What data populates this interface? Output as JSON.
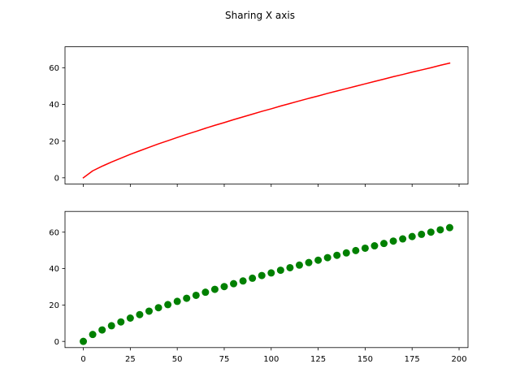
{
  "figure": {
    "title": "Sharing X axis"
  },
  "chart_data": [
    {
      "type": "line",
      "title": "",
      "xlabel": "",
      "ylabel": "",
      "sharex": true,
      "xlim": [
        -9.75,
        204.75
      ],
      "ylim": [
        -3.4,
        71.4
      ],
      "xticks": [
        0,
        25,
        50,
        75,
        100,
        125,
        150,
        175,
        200
      ],
      "xtick_labels_visible": false,
      "yticks": [
        0,
        20,
        40,
        60
      ],
      "ytick_labels": [
        "0",
        "20",
        "40",
        "60"
      ],
      "grid": false,
      "color": "#ff0000",
      "series": [
        {
          "x": [
            0,
            5,
            10,
            15,
            20,
            25,
            30,
            35,
            40,
            45,
            50,
            55,
            60,
            65,
            70,
            75,
            80,
            85,
            90,
            95,
            100,
            105,
            110,
            115,
            120,
            125,
            130,
            135,
            140,
            145,
            150,
            155,
            160,
            165,
            170,
            175,
            180,
            185,
            190,
            195
          ],
          "values": [
            0,
            3.8,
            6.3,
            8.6,
            10.7,
            12.8,
            14.7,
            16.6,
            18.5,
            20.2,
            22.0,
            23.7,
            25.3,
            27.0,
            28.6,
            30.1,
            31.7,
            33.2,
            34.7,
            36.2,
            37.6,
            39.1,
            40.5,
            41.9,
            43.3,
            44.6,
            46.0,
            47.3,
            48.6,
            49.9,
            51.2,
            52.5,
            53.8,
            55.1,
            56.3,
            57.6,
            58.8,
            60.0,
            61.3,
            62.5
          ]
        }
      ]
    },
    {
      "type": "scatter",
      "title": "",
      "xlabel": "",
      "ylabel": "",
      "sharex": true,
      "xlim": [
        -9.75,
        204.75
      ],
      "ylim": [
        -3.4,
        71.4
      ],
      "xticks": [
        0,
        25,
        50,
        75,
        100,
        125,
        150,
        175,
        200
      ],
      "xtick_labels": [
        "0",
        "25",
        "50",
        "75",
        "100",
        "125",
        "150",
        "175",
        "200"
      ],
      "yticks": [
        0,
        20,
        40,
        60
      ],
      "ytick_labels": [
        "0",
        "20",
        "40",
        "60"
      ],
      "grid": false,
      "color": "#008000",
      "series": [
        {
          "x": [
            0,
            5,
            10,
            15,
            20,
            25,
            30,
            35,
            40,
            45,
            50,
            55,
            60,
            65,
            70,
            75,
            80,
            85,
            90,
            95,
            100,
            105,
            110,
            115,
            120,
            125,
            130,
            135,
            140,
            145,
            150,
            155,
            160,
            165,
            170,
            175,
            180,
            185,
            190,
            195
          ],
          "values": [
            0,
            3.8,
            6.3,
            8.6,
            10.7,
            12.8,
            14.7,
            16.6,
            18.5,
            20.2,
            22.0,
            23.7,
            25.3,
            27.0,
            28.6,
            30.1,
            31.7,
            33.2,
            34.7,
            36.2,
            37.6,
            39.1,
            40.5,
            41.9,
            43.3,
            44.6,
            46.0,
            47.3,
            48.6,
            49.9,
            51.2,
            52.5,
            53.8,
            55.1,
            56.3,
            57.6,
            58.8,
            60.0,
            61.3,
            62.5
          ]
        }
      ]
    }
  ]
}
